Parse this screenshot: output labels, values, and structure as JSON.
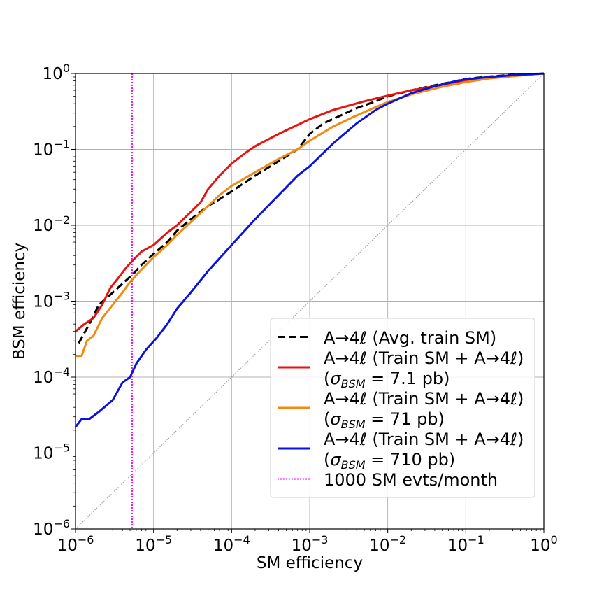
{
  "chart_data": {
    "type": "line",
    "title": "",
    "xlabel": "SM efficiency",
    "ylabel": "BSM efficiency",
    "xscale": "log",
    "yscale": "log",
    "xlim": [
      1e-06,
      1
    ],
    "ylim": [
      1e-06,
      1
    ],
    "grid": true,
    "legend_position": "lower-right",
    "x_ticks": [
      {
        "base": "10",
        "exp": "−6"
      },
      {
        "base": "10",
        "exp": "−5"
      },
      {
        "base": "10",
        "exp": "−4"
      },
      {
        "base": "10",
        "exp": "−3"
      },
      {
        "base": "10",
        "exp": "−2"
      },
      {
        "base": "10",
        "exp": "−1"
      },
      {
        "base": "10",
        "exp": "0"
      }
    ],
    "y_ticks": [
      {
        "base": "10",
        "exp": "−6"
      },
      {
        "base": "10",
        "exp": "−5"
      },
      {
        "base": "10",
        "exp": "−4"
      },
      {
        "base": "10",
        "exp": "−3"
      },
      {
        "base": "10",
        "exp": "−2"
      },
      {
        "base": "10",
        "exp": "−1"
      },
      {
        "base": "10",
        "exp": "0"
      }
    ],
    "series": [
      {
        "id": "avg",
        "color": "#000000",
        "style": "dashed",
        "legend": [
          "A→4ℓ (Avg. train SM)"
        ],
        "x": [
          1.1e-06,
          1.5e-06,
          2e-06,
          3e-06,
          4e-06,
          5.5e-06,
          7e-06,
          1e-05,
          1.5e-05,
          2e-05,
          3e-05,
          5e-05,
          7e-05,
          0.0001,
          0.0002,
          0.0004,
          0.0007,
          0.001,
          0.0015,
          0.0025,
          0.004,
          0.007,
          0.01,
          0.02,
          0.04,
          0.07,
          0.1,
          0.2,
          0.4,
          1
        ],
        "y": [
          0.00028,
          0.0005,
          0.0009,
          0.0013,
          0.0017,
          0.0023,
          0.003,
          0.0042,
          0.006,
          0.0085,
          0.012,
          0.018,
          0.022,
          0.028,
          0.045,
          0.07,
          0.1,
          0.16,
          0.22,
          0.28,
          0.35,
          0.43,
          0.5,
          0.6,
          0.7,
          0.78,
          0.85,
          0.91,
          0.96,
          1.0
        ]
      },
      {
        "id": "s7",
        "color": "#e8120f",
        "style": "solid",
        "legend": [
          "A→4ℓ (Train SM + A→4ℓ)",
          "(σBSM = 7.1 pb)"
        ],
        "x": [
          1e-06,
          1.3e-06,
          1.7e-06,
          2.2e-06,
          2.8e-06,
          3.5e-06,
          4.5e-06,
          5.5e-06,
          7e-06,
          1e-05,
          1.5e-05,
          2e-05,
          3e-05,
          4e-05,
          5e-05,
          7e-05,
          0.0001,
          0.00015,
          0.0002,
          0.0004,
          0.0007,
          0.001,
          0.002,
          0.005,
          0.01,
          0.02,
          0.05,
          0.1,
          0.2,
          0.5,
          1
        ],
        "y": [
          0.0004,
          0.0005,
          0.0006,
          0.0009,
          0.0015,
          0.002,
          0.0028,
          0.0035,
          0.0045,
          0.0055,
          0.008,
          0.01,
          0.015,
          0.02,
          0.03,
          0.045,
          0.065,
          0.09,
          0.11,
          0.16,
          0.21,
          0.25,
          0.33,
          0.43,
          0.51,
          0.6,
          0.71,
          0.8,
          0.88,
          0.95,
          1.0
        ]
      },
      {
        "id": "s71",
        "color": "#f08a10",
        "style": "solid",
        "legend": [
          "A→4ℓ (Train SM + A→4ℓ)",
          "(σBSM = 71 pb)"
        ],
        "x": [
          1e-06,
          1.2e-06,
          1.4e-06,
          1.7e-06,
          2.2e-06,
          3e-06,
          4e-06,
          5e-06,
          6e-06,
          8e-06,
          1e-05,
          1.5e-05,
          2e-05,
          3e-05,
          5e-05,
          7e-05,
          0.0001,
          0.0002,
          0.0004,
          0.0007,
          0.001,
          0.002,
          0.004,
          0.007,
          0.01,
          0.02,
          0.05,
          0.1,
          0.2,
          0.5,
          1
        ],
        "y": [
          0.00019,
          0.00019,
          0.0003,
          0.00035,
          0.0006,
          0.0009,
          0.0013,
          0.0018,
          0.0022,
          0.003,
          0.0038,
          0.0055,
          0.0075,
          0.011,
          0.018,
          0.025,
          0.033,
          0.05,
          0.075,
          0.1,
          0.13,
          0.2,
          0.28,
          0.36,
          0.42,
          0.53,
          0.67,
          0.77,
          0.86,
          0.94,
          1.0
        ]
      },
      {
        "id": "s710",
        "color": "#0a12e0",
        "style": "solid",
        "legend": [
          "A→4ℓ (Train SM + A→4ℓ)",
          "(σBSM = 710 pb)"
        ],
        "x": [
          1e-06,
          1.2e-06,
          1.5e-06,
          2e-06,
          3e-06,
          4e-06,
          5e-06,
          6e-06,
          8e-06,
          1.1e-05,
          1.5e-05,
          2e-05,
          3e-05,
          5e-05,
          0.0001,
          0.0002,
          0.0004,
          0.0007,
          0.001,
          0.002,
          0.004,
          0.007,
          0.01,
          0.02,
          0.04,
          0.07,
          0.1,
          0.2,
          0.4,
          1
        ],
        "y": [
          2.2e-05,
          2.8e-05,
          2.8e-05,
          3.5e-05,
          5e-05,
          8.5e-05,
          0.0001,
          0.00015,
          0.00023,
          0.00033,
          0.0005,
          0.0008,
          0.0013,
          0.0025,
          0.0055,
          0.012,
          0.025,
          0.045,
          0.06,
          0.12,
          0.22,
          0.33,
          0.4,
          0.55,
          0.68,
          0.78,
          0.84,
          0.9,
          0.95,
          1.0
        ]
      }
    ],
    "diagonal": {
      "color": "#999999",
      "style": "dotted"
    },
    "vline": {
      "x": 5.3e-06,
      "color": "#ff00ff",
      "style": "dotted",
      "legend": [
        "1000 SM evts/month"
      ]
    }
  }
}
